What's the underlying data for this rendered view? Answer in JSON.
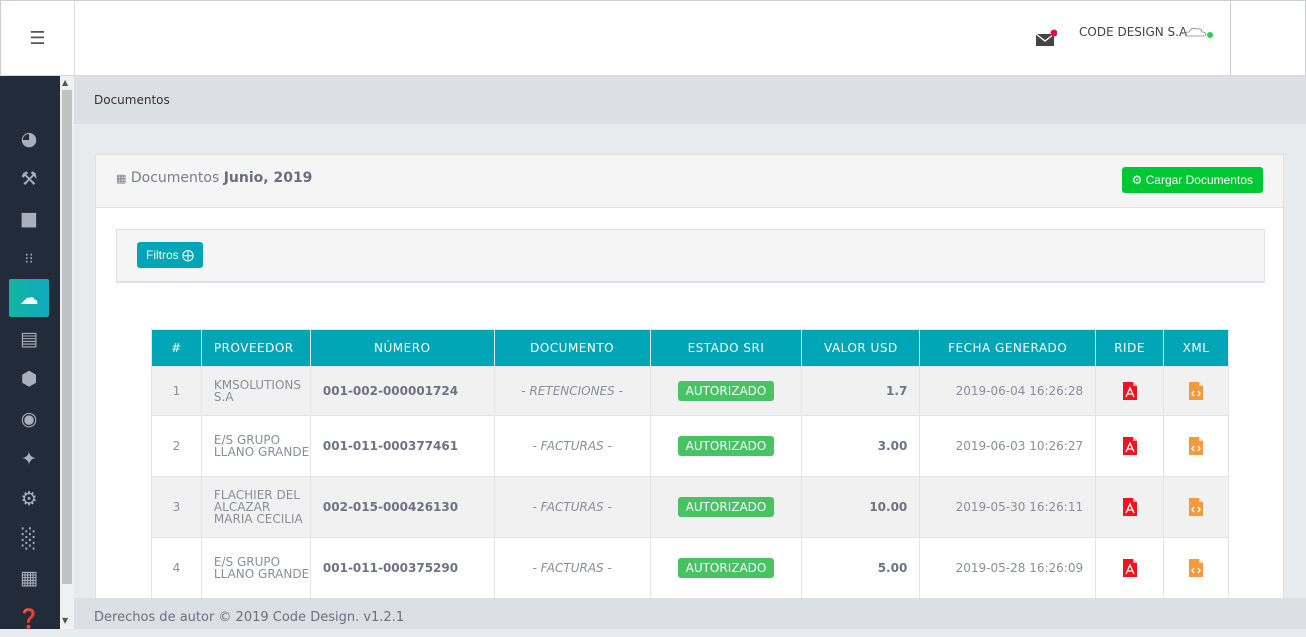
{
  "header": {
    "company": "CODE DESIGN S.A",
    "menu_icon": "hamburger-icon",
    "mail_icon": "mail-icon"
  },
  "sidebar": {
    "items": [
      "dashboard-icon",
      "hammer-icon",
      "folder-icon",
      "grid-icon",
      "cloud-check-icon",
      "newspaper-icon",
      "cube-icon",
      "users-icon",
      "person-icon",
      "settings-icon",
      "bar-chart-icon",
      "book-icon",
      "help-icon"
    ],
    "active": 4
  },
  "breadcrumb": "Documentos",
  "card": {
    "title": "Documentos",
    "period": "Junio, 2019",
    "load_button": "Cargar Documentos",
    "filter_button": "Filtros"
  },
  "table": {
    "headers": [
      "#",
      "PROVEEDOR",
      "NÚMERO",
      "DOCUMENTO",
      "ESTADO SRI",
      "VALOR USD",
      "FECHA GENERADO",
      "RIDE",
      "XML"
    ],
    "rows": [
      {
        "n": "1",
        "prov": "KMSOLUTIONS S.A",
        "num": "001-002-000001724",
        "doc": "- RETENCIONES -",
        "estado": "AUTORIZADO",
        "valor": "1.7",
        "fecha": "2019-06-04 16:26:28"
      },
      {
        "n": "2",
        "prov": "E/S GRUPO LLANO GRANDE",
        "num": "001-011-000377461",
        "doc": "- FACTURAS -",
        "estado": "AUTORIZADO",
        "valor": "3.00",
        "fecha": "2019-06-03 10:26:27"
      },
      {
        "n": "3",
        "prov": "FLACHIER DEL ALCAZAR MARIA CECILIA",
        "num": "002-015-000426130",
        "doc": "- FACTURAS -",
        "estado": "AUTORIZADO",
        "valor": "10.00",
        "fecha": "2019-05-30 16:26:11"
      },
      {
        "n": "4",
        "prov": "E/S GRUPO LLANO GRANDE",
        "num": "001-011-000375290",
        "doc": "- FACTURAS -",
        "estado": "AUTORIZADO",
        "valor": "5.00",
        "fecha": "2019-05-28 16:26:09"
      }
    ]
  },
  "footer": "Derechos de autor © 2019 Code Design. v1.2.1",
  "colors": {
    "sidebar": "#222b3a",
    "accent": "#00a5b6",
    "green": "#00c832",
    "badge": "#47c363"
  }
}
